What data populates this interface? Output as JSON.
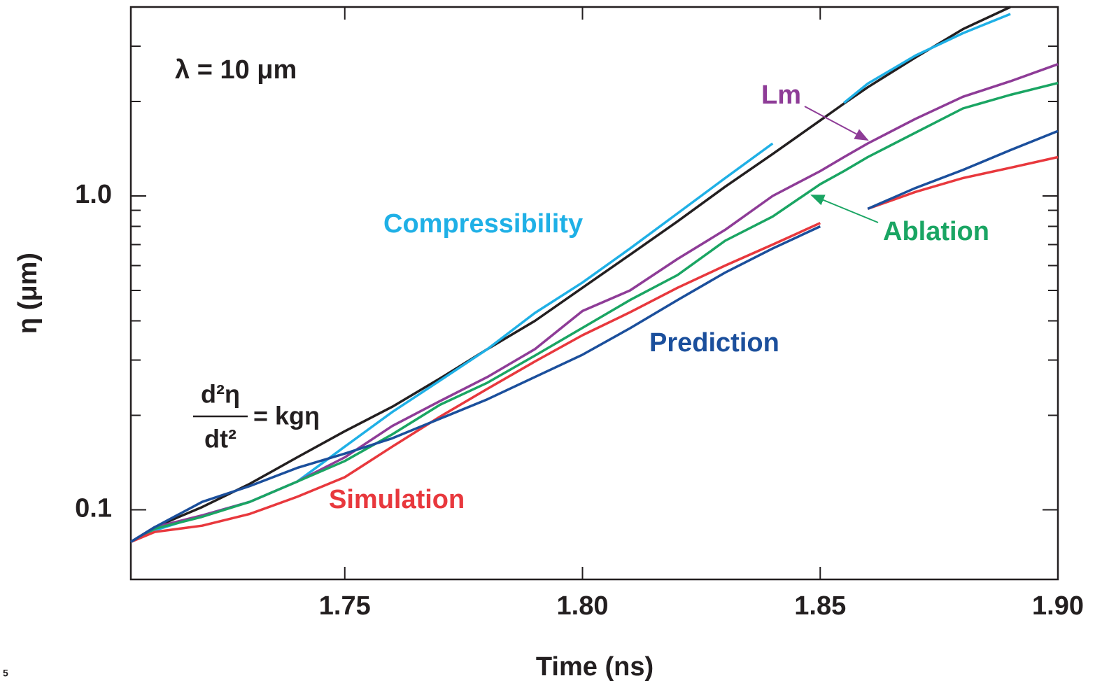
{
  "chart_data": {
    "type": "line",
    "xlabel": "Time (ns)",
    "ylabel": "η (μm)",
    "log_y": true,
    "xlim": [
      1.705,
      1.9
    ],
    "ylim": [
      0.06,
      4.0
    ],
    "xticks": [
      1.75,
      {
        "value": 1.8,
        "label": "1.80"
      },
      1.85,
      {
        "value": 1.9,
        "label": "1.90"
      }
    ],
    "yticks": [
      0.1,
      {
        "value": 1,
        "label": "1.0"
      }
    ],
    "yminorticks": [
      0.2,
      0.3,
      0.4,
      0.5,
      0.6,
      0.7,
      0.8,
      0.9,
      2,
      3
    ],
    "annotations": {
      "wavelength": "λ = 10 μm",
      "numerator": "d²η",
      "denominator": "dt²",
      "rhs": "= kgη"
    },
    "footnote": "5",
    "x": [
      1.705,
      1.71,
      1.72,
      1.73,
      1.74,
      1.75,
      1.76,
      1.77,
      1.78,
      1.79,
      1.8,
      1.81,
      1.82,
      1.83,
      1.84,
      1.85,
      1.855,
      1.86,
      1.87,
      1.88,
      1.89,
      1.9
    ],
    "series": [
      {
        "color": "#231f20",
        "values": [
          0.079,
          0.088,
          0.102,
          0.121,
          0.147,
          0.178,
          0.213,
          0.262,
          0.325,
          0.4,
          0.51,
          0.65,
          0.83,
          1.07,
          1.36,
          1.74,
          1.97,
          2.22,
          2.76,
          3.4,
          4.0,
          null
        ]
      },
      {
        "name": "Compressibility",
        "color": "#1fb0e6",
        "values": [
          0.079,
          0.086,
          0.096,
          0.106,
          0.123,
          0.159,
          0.205,
          0.258,
          0.325,
          0.424,
          0.53,
          0.68,
          0.88,
          1.14,
          1.47,
          null,
          1.98,
          2.28,
          2.8,
          3.3,
          3.8,
          null
        ]
      },
      {
        "name": "Lm",
        "color": "#8e3c97",
        "values": [
          0.079,
          0.088,
          0.096,
          0.106,
          0.123,
          0.147,
          0.185,
          0.222,
          0.265,
          0.325,
          0.43,
          0.5,
          0.63,
          0.78,
          1.0,
          1.2,
          1.33,
          1.47,
          1.76,
          2.07,
          2.32,
          2.63
        ]
      },
      {
        "name": "Ablation",
        "color": "#1aa563",
        "values": [
          0.079,
          0.087,
          0.095,
          0.106,
          0.123,
          0.143,
          0.174,
          0.216,
          0.254,
          0.31,
          0.38,
          0.466,
          0.56,
          0.72,
          0.86,
          1.09,
          1.2,
          1.33,
          1.59,
          1.9,
          2.1,
          2.29
        ]
      },
      {
        "name": "Simulation",
        "color": "#e8383d",
        "values": [
          0.079,
          0.085,
          0.089,
          0.097,
          0.11,
          0.127,
          0.159,
          0.198,
          0.243,
          0.297,
          0.36,
          0.426,
          0.51,
          0.6,
          0.7,
          0.82,
          null,
          0.91,
          1.03,
          1.14,
          1.23,
          1.33
        ]
      },
      {
        "name": "Prediction",
        "color": "#1b4f9c",
        "values": [
          0.079,
          0.088,
          0.106,
          0.119,
          0.136,
          0.151,
          0.169,
          0.195,
          0.225,
          0.265,
          0.312,
          0.379,
          0.466,
          0.57,
          0.68,
          0.8,
          null,
          0.91,
          1.06,
          1.21,
          1.4,
          1.61
        ]
      }
    ]
  }
}
